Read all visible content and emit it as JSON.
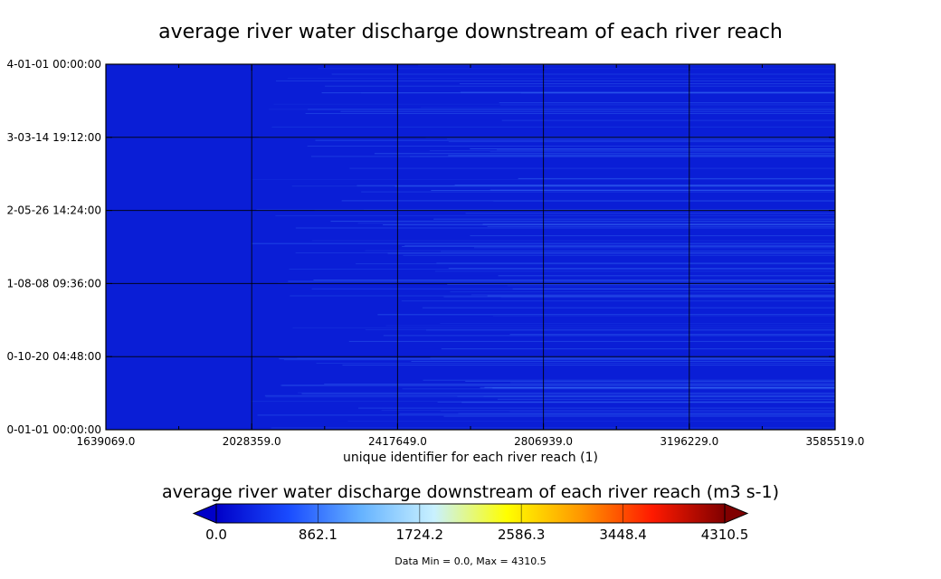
{
  "chart_data": {
    "type": "heatmap",
    "title": "average river water discharge downstream of each river reach",
    "xlabel": "unique identifier for each river reach (1)",
    "ylabel": "",
    "x_ticks": [
      "1639069.0",
      "2028359.0",
      "2417649.0",
      "2806939.0",
      "3196229.0",
      "3585519.0"
    ],
    "y_ticks": [
      "4-01-01 00:00:00",
      "3-03-14 19:12:00",
      "2-05-26 14:24:00",
      "1-08-08 09:36:00",
      "0-10-20 04:48:00",
      "0-01-01 00:00:00"
    ],
    "xlim": [
      1639069.0,
      3585519.0
    ],
    "grid": true,
    "colormap": [
      "#0000c8",
      "#1a4cff",
      "#66b3ff",
      "#c9f1ff",
      "#ffff00",
      "#ff9900",
      "#ff1a00",
      "#800000"
    ],
    "colorbar": {
      "title": "average river water discharge downstream of each river reach (m3 s-1)",
      "ticks": [
        "0.0",
        "862.1",
        "1724.2",
        "2586.3",
        "3448.4",
        "4310.5"
      ],
      "range": [
        0.0,
        4310.5
      ],
      "extend": "both"
    },
    "data_min": 0.0,
    "data_max": 4310.5,
    "stats_text": "Data Min = 0.0, Max = 4310.5",
    "background_color": "#0a1ed6"
  }
}
